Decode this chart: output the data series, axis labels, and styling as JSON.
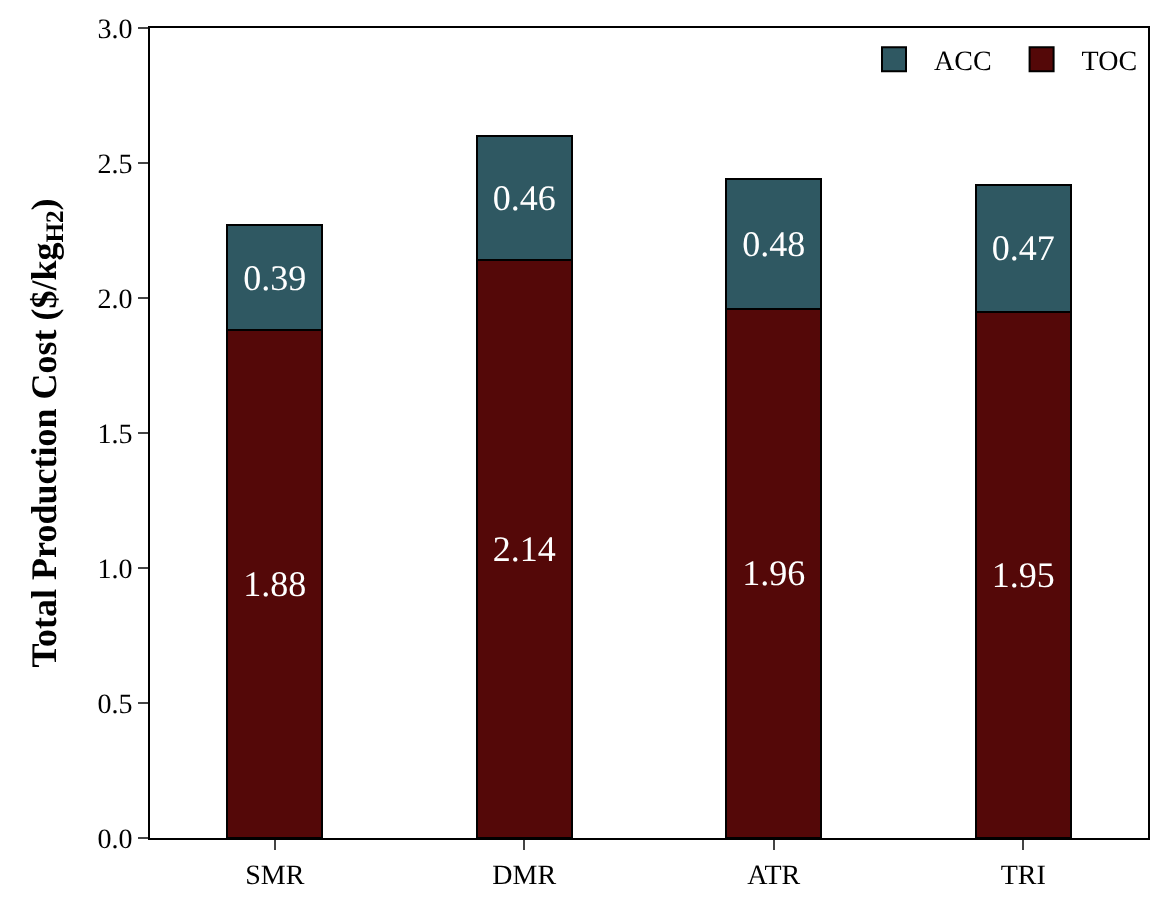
{
  "chart_data": {
    "type": "bar",
    "stacked": true,
    "ylabel": "Total Production Cost ($/kg$_{H2}$)",
    "categories": [
      "SMR",
      "DMR",
      "ATR",
      "TRI"
    ],
    "series": [
      {
        "name": "TOC",
        "color": "#540808",
        "values": [
          1.88,
          2.14,
          1.96,
          1.95
        ]
      },
      {
        "name": "ACC",
        "color": "#2f5862",
        "values": [
          0.39,
          0.46,
          0.48,
          0.47
        ]
      }
    ],
    "ylim": [
      0,
      3.0
    ],
    "yticks": [
      {
        "value": 0,
        "label": "0.0"
      },
      {
        "value": 0.5,
        "label": "0.5"
      },
      {
        "value": 1.0,
        "label": "1.0"
      },
      {
        "value": 1.5,
        "label": "1.5"
      },
      {
        "value": 2.0,
        "label": "2.0"
      },
      {
        "value": 2.5,
        "label": "2.5"
      },
      {
        "value": 3.0,
        "label": "3.0"
      }
    ],
    "data_labels": true,
    "legend": "top right"
  }
}
